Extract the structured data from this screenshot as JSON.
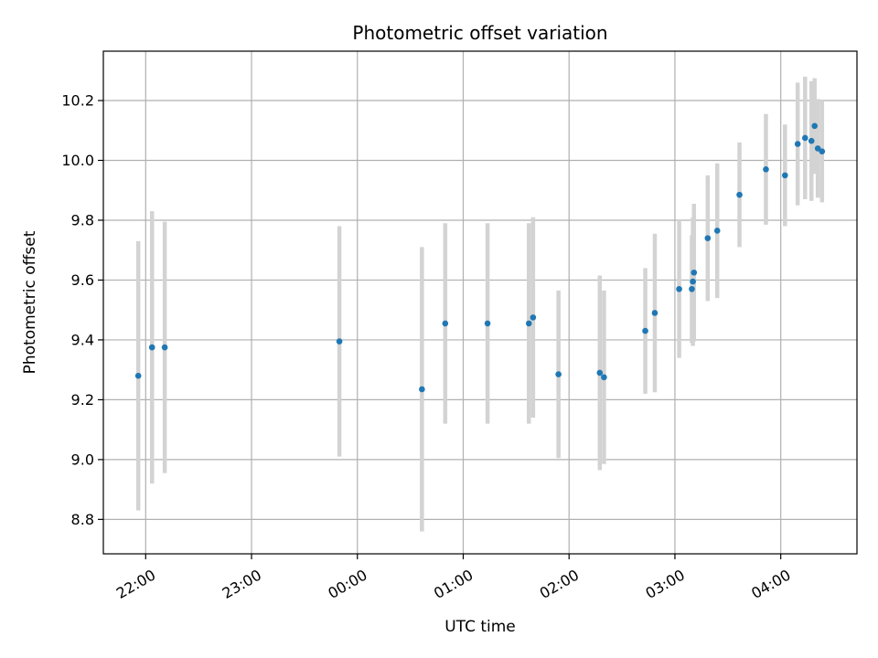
{
  "chart_data": {
    "type": "scatter",
    "title": "Photometric offset variation",
    "xlabel": "UTC time",
    "ylabel": "Photometric offset",
    "x_unit": "hours relative to 00:00 UTC",
    "xlim": [
      -2.4,
      4.72
    ],
    "ylim": [
      8.685,
      10.365
    ],
    "grid": true,
    "x_ticks": [
      {
        "value": -2,
        "label": "22:00"
      },
      {
        "value": -1,
        "label": "23:00"
      },
      {
        "value": 0,
        "label": "00:00"
      },
      {
        "value": 1,
        "label": "01:00"
      },
      {
        "value": 2,
        "label": "02:00"
      },
      {
        "value": 3,
        "label": "03:00"
      },
      {
        "value": 4,
        "label": "04:00"
      }
    ],
    "y_ticks": [
      {
        "value": 8.8,
        "label": "8.8"
      },
      {
        "value": 9.0,
        "label": "9.0"
      },
      {
        "value": 9.2,
        "label": "9.2"
      },
      {
        "value": 9.4,
        "label": "9.4"
      },
      {
        "value": 9.6,
        "label": "9.6"
      },
      {
        "value": 9.8,
        "label": "9.8"
      },
      {
        "value": 10.0,
        "label": "10.0"
      },
      {
        "value": 10.2,
        "label": "10.2"
      }
    ],
    "colors": {
      "point": "#1f77b4",
      "errorbar": "#d3d3d3",
      "grid": "#b0b0b0",
      "axis": "#000000"
    },
    "points": [
      {
        "x": -2.07,
        "y": 9.28,
        "err": 0.45
      },
      {
        "x": -1.94,
        "y": 9.375,
        "err": 0.455
      },
      {
        "x": -1.82,
        "y": 9.375,
        "err": 0.42
      },
      {
        "x": -0.17,
        "y": 9.395,
        "err": 0.385
      },
      {
        "x": 0.61,
        "y": 9.235,
        "err": 0.475
      },
      {
        "x": 0.83,
        "y": 9.455,
        "err": 0.335
      },
      {
        "x": 1.23,
        "y": 9.455,
        "err": 0.335
      },
      {
        "x": 1.62,
        "y": 9.455,
        "err": 0.335
      },
      {
        "x": 1.66,
        "y": 9.475,
        "err": 0.335
      },
      {
        "x": 1.9,
        "y": 9.285,
        "err": 0.28
      },
      {
        "x": 2.29,
        "y": 9.29,
        "err": 0.325
      },
      {
        "x": 2.33,
        "y": 9.275,
        "err": 0.29
      },
      {
        "x": 2.72,
        "y": 9.43,
        "err": 0.21
      },
      {
        "x": 2.81,
        "y": 9.49,
        "err": 0.265
      },
      {
        "x": 3.04,
        "y": 9.57,
        "err": 0.23
      },
      {
        "x": 3.16,
        "y": 9.57,
        "err": 0.18
      },
      {
        "x": 3.17,
        "y": 9.595,
        "err": 0.215
      },
      {
        "x": 3.18,
        "y": 9.625,
        "err": 0.23
      },
      {
        "x": 3.31,
        "y": 9.74,
        "err": 0.21
      },
      {
        "x": 3.4,
        "y": 9.765,
        "err": 0.225
      },
      {
        "x": 3.61,
        "y": 9.885,
        "err": 0.175
      },
      {
        "x": 3.86,
        "y": 9.97,
        "err": 0.185
      },
      {
        "x": 4.04,
        "y": 9.95,
        "err": 0.17
      },
      {
        "x": 4.16,
        "y": 10.055,
        "err": 0.205
      },
      {
        "x": 4.23,
        "y": 10.075,
        "err": 0.205
      },
      {
        "x": 4.29,
        "y": 10.065,
        "err": 0.2
      },
      {
        "x": 4.32,
        "y": 10.115,
        "err": 0.16
      },
      {
        "x": 4.35,
        "y": 10.04,
        "err": 0.165
      },
      {
        "x": 4.39,
        "y": 10.03,
        "err": 0.17
      }
    ]
  }
}
